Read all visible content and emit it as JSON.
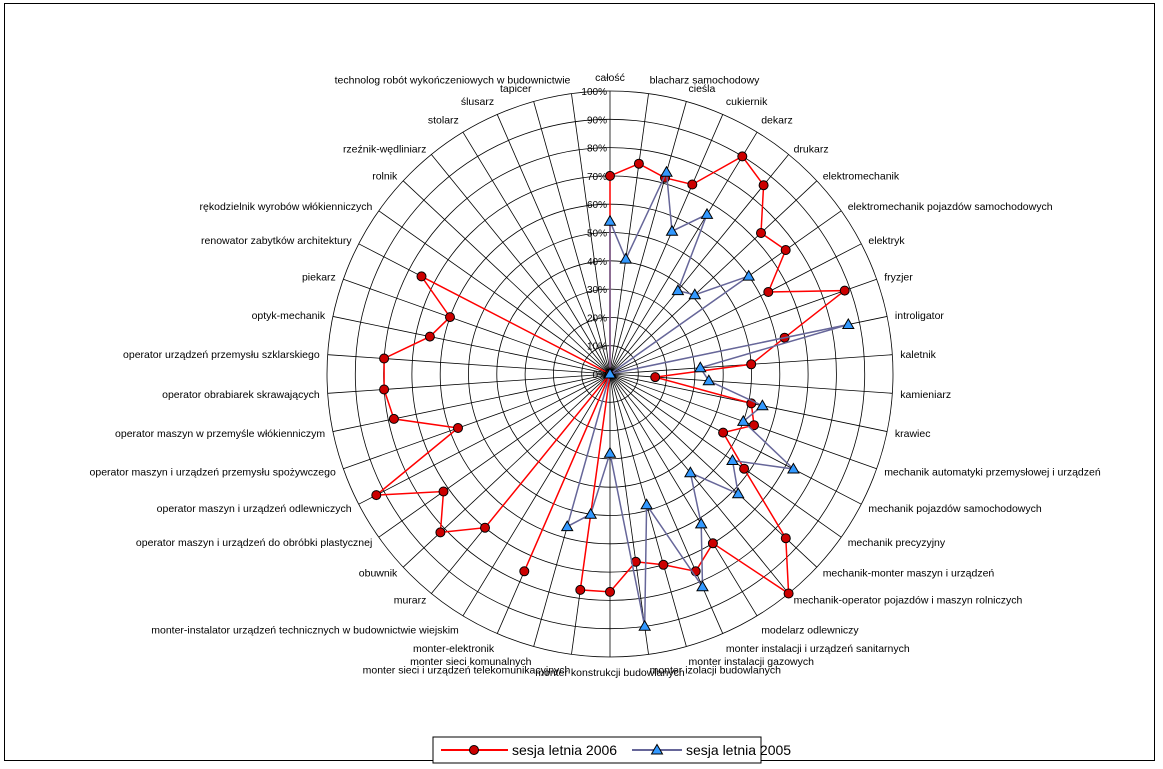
{
  "chart_data": {
    "type": "radar",
    "categories": [
      "całość",
      "blacharz samochodowy",
      "cieśla",
      "cukiernik",
      "dekarz",
      "drukarz",
      "elektromechanik",
      "elektromechanik pojazdów samochodowych",
      "elektryk",
      "fryzjer",
      "introligator",
      "kaletnik",
      "kamieniarz",
      "krawiec",
      "mechanik automatyki przemysłowej i urządzeń",
      "mechanik pojazdów samochodowych",
      "mechanik precyzyjny",
      "mechanik-monter maszyn i urządzeń",
      "mechanik-operator pojazdów i maszyn rolniczych",
      "modelarz odlewniczy",
      "monter instalacji i urządzeń sanitarnych",
      "monter instalacji gazowych",
      "monter izolacji budowlanych",
      "monter konstrukcji budowlanych",
      "monter sieci i urządzeń telekomunikacyjnych",
      "monter sieci komunalnych",
      "monter-elektronik",
      "monter-instalator urządzeń technicznych w budownictwie wiejskim",
      "murarz",
      "obuwnik",
      "operator maszyn i urządzeń do obróbki plastycznej",
      "operator maszyn i urządzeń odlewniczych",
      "operator maszyn i urządzeń przemysłu spożywczego",
      "operator maszyn w przemyśle włókienniczym",
      "operator obrabiarek skrawających",
      "operator urządzeń przemysłu szklarskiego",
      "optyk-mechanik",
      "piekarz",
      "renowator zabytków architektury",
      "rękodzielnik wyrobów włókienniczych",
      "rolnik",
      "rzeźnik-wędliniarz",
      "stolarz",
      "ślusarz",
      "tapicer",
      "technolog robót wykończeniowych w budownictwie"
    ],
    "tick_labels": [
      "0%",
      "10%",
      "20%",
      "30%",
      "40%",
      "50%",
      "60%",
      "70%",
      "80%",
      "90%",
      "100%"
    ],
    "rlim": [
      0,
      100
    ],
    "series": [
      {
        "name": "sesja letnia 2006",
        "color": "#ff0000",
        "marker_color": "#cc0000",
        "marker": "circle",
        "values": [
          70,
          75,
          72,
          73,
          90,
          86,
          73,
          76,
          63,
          88,
          63,
          50,
          16,
          51,
          54,
          45,
          58,
          85,
          100,
          70,
          76,
          70,
          67,
          77,
          77,
          0,
          76,
          0,
          70,
          82,
          72,
          93,
          57,
          78,
          80,
          80,
          65,
          60,
          75,
          0,
          0,
          0,
          0,
          0,
          0,
          0
        ]
      },
      {
        "name": "sesja letnia 2005",
        "color": "#666699",
        "marker_color": "#3399ff",
        "marker": "triangle",
        "values": [
          54,
          41,
          74,
          55,
          66,
          38,
          41,
          60,
          0,
          0,
          86,
          32,
          35,
          55,
          50,
          73,
          53,
          62,
          45,
          62,
          82,
          48,
          90,
          28,
          50,
          56,
          0,
          0,
          0,
          0,
          0,
          0,
          0,
          0,
          0,
          0,
          0,
          0,
          0,
          0,
          0,
          0,
          0,
          0,
          0,
          0
        ]
      }
    ],
    "legend": {
      "position": "bottom-center"
    },
    "grid": true
  }
}
